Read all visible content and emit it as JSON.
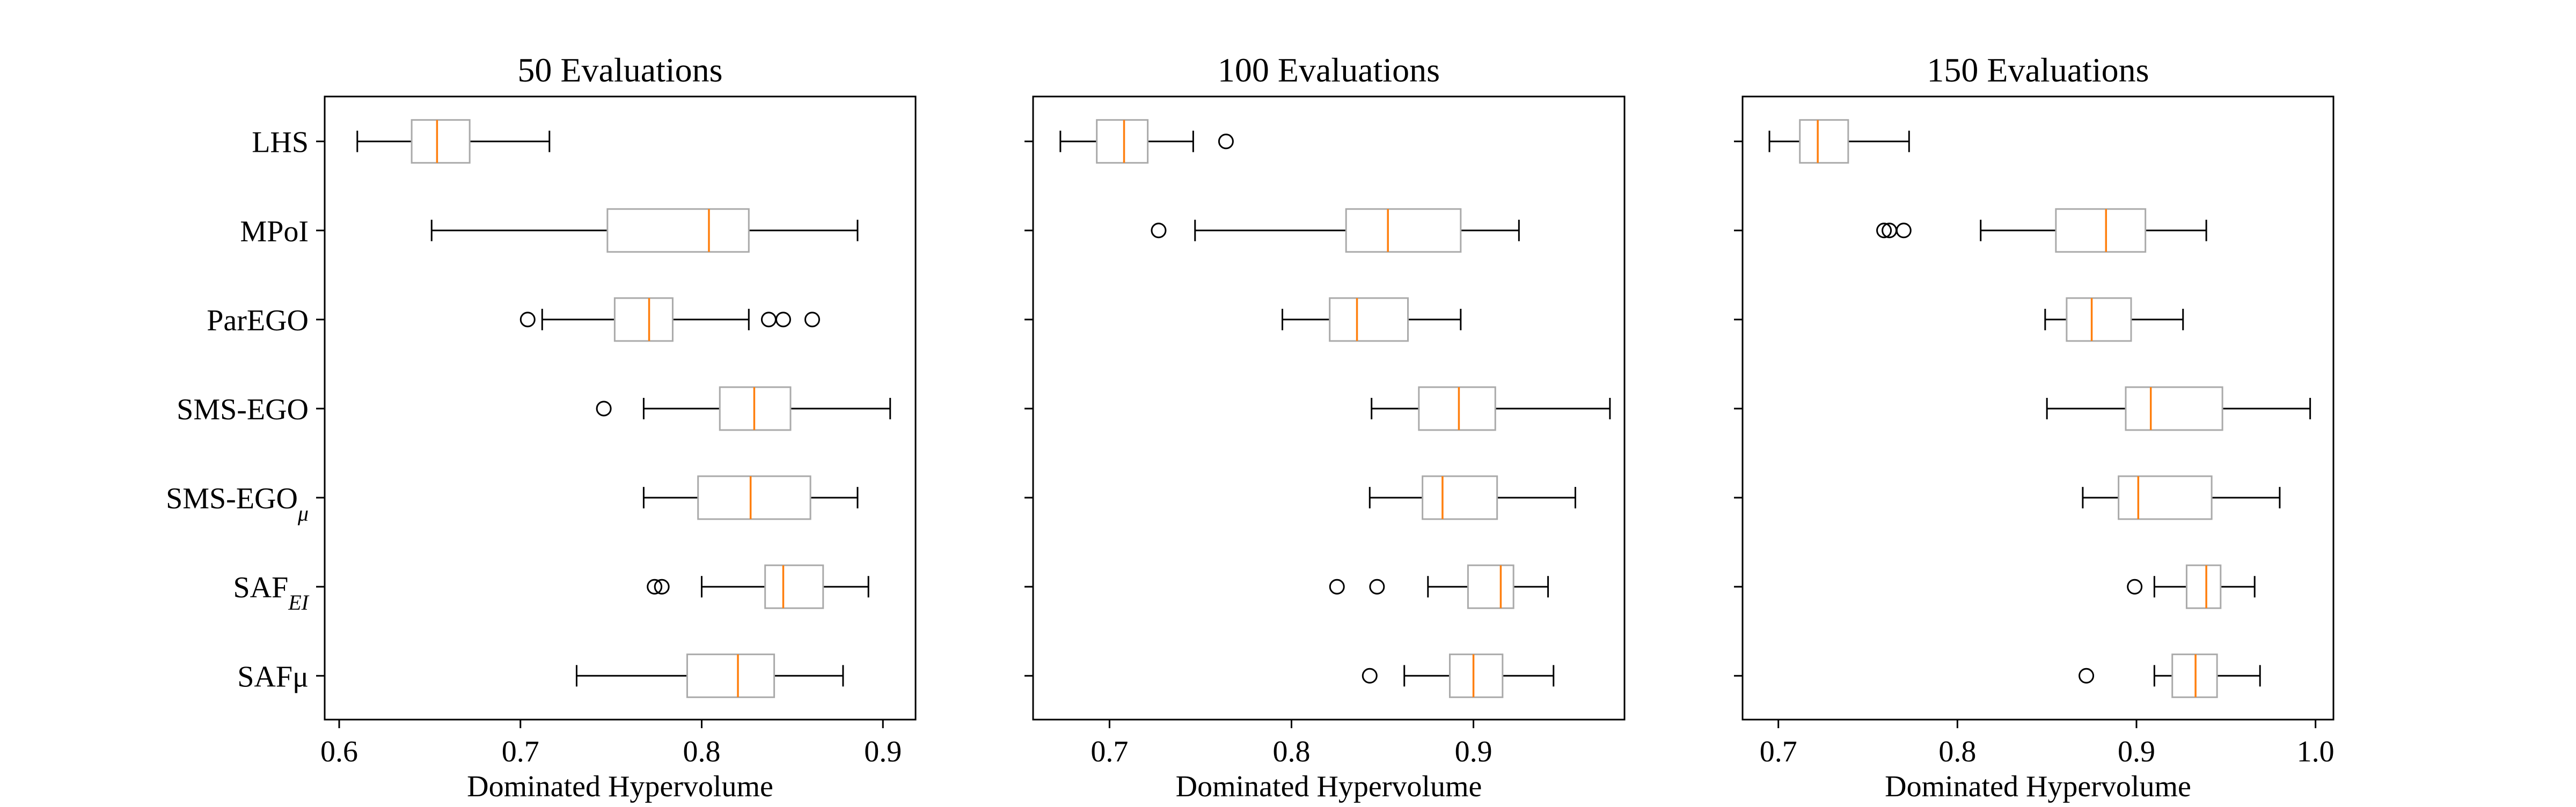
{
  "chart_data": [
    {
      "type": "box",
      "title": "50 Evaluations",
      "xlabel": "Dominated Hypervolume",
      "xlim": [
        0.592,
        0.918
      ],
      "xticks": [
        0.6,
        0.7,
        0.8,
        0.9
      ],
      "xtick_labels": [
        "0.6",
        "0.7",
        "0.8",
        "0.9"
      ],
      "categories": [
        "LHS",
        "MPoI",
        "ParEGO",
        "SMS-EGO",
        "SMS-EGO_μ",
        "SAF_EI",
        "SAFμ"
      ],
      "boxes": [
        {
          "whislo": 0.61,
          "q1": 0.64,
          "med": 0.654,
          "q3": 0.672,
          "whishi": 0.716,
          "fliers": []
        },
        {
          "whislo": 0.651,
          "q1": 0.748,
          "med": 0.804,
          "q3": 0.826,
          "whishi": 0.886,
          "fliers": []
        },
        {
          "whislo": 0.712,
          "q1": 0.752,
          "med": 0.771,
          "q3": 0.784,
          "whishi": 0.826,
          "fliers": [
            0.704,
            0.837,
            0.845,
            0.861
          ]
        },
        {
          "whislo": 0.768,
          "q1": 0.81,
          "med": 0.829,
          "q3": 0.849,
          "whishi": 0.904,
          "fliers": [
            0.746
          ]
        },
        {
          "whislo": 0.768,
          "q1": 0.798,
          "med": 0.827,
          "q3": 0.86,
          "whishi": 0.886,
          "fliers": []
        },
        {
          "whislo": 0.8,
          "q1": 0.835,
          "med": 0.845,
          "q3": 0.867,
          "whishi": 0.892,
          "fliers": [
            0.774,
            0.778
          ]
        },
        {
          "whislo": 0.731,
          "q1": 0.792,
          "med": 0.82,
          "q3": 0.84,
          "whishi": 0.878,
          "fliers": []
        }
      ]
    },
    {
      "type": "box",
      "title": "100 Evaluations",
      "xlabel": "Dominated Hypervolume",
      "xlim": [
        0.658,
        0.983
      ],
      "xticks": [
        0.7,
        0.8,
        0.9
      ],
      "xtick_labels": [
        "0.7",
        "0.8",
        "0.9"
      ],
      "categories": [
        "LHS",
        "MPoI",
        "ParEGO",
        "SMS-EGO",
        "SMS-EGO_μ",
        "SAF_EI",
        "SAFμ"
      ],
      "boxes": [
        {
          "whislo": 0.673,
          "q1": 0.693,
          "med": 0.708,
          "q3": 0.721,
          "whishi": 0.746,
          "fliers": [
            0.764
          ]
        },
        {
          "whislo": 0.747,
          "q1": 0.83,
          "med": 0.853,
          "q3": 0.893,
          "whishi": 0.925,
          "fliers": [
            0.727
          ]
        },
        {
          "whislo": 0.795,
          "q1": 0.821,
          "med": 0.836,
          "q3": 0.864,
          "whishi": 0.893,
          "fliers": []
        },
        {
          "whislo": 0.844,
          "q1": 0.87,
          "med": 0.892,
          "q3": 0.912,
          "whishi": 0.975,
          "fliers": []
        },
        {
          "whislo": 0.843,
          "q1": 0.872,
          "med": 0.883,
          "q3": 0.913,
          "whishi": 0.956,
          "fliers": []
        },
        {
          "whislo": 0.875,
          "q1": 0.897,
          "med": 0.915,
          "q3": 0.922,
          "whishi": 0.941,
          "fliers": [
            0.825,
            0.847
          ]
        },
        {
          "whislo": 0.862,
          "q1": 0.887,
          "med": 0.9,
          "q3": 0.916,
          "whishi": 0.944,
          "fliers": [
            0.843
          ]
        }
      ]
    },
    {
      "type": "box",
      "title": "150 Evaluations",
      "xlabel": "Dominated Hypervolume",
      "xlim": [
        0.68,
        1.01
      ],
      "xticks": [
        0.7,
        0.8,
        0.9,
        1.0
      ],
      "xtick_labels": [
        "0.7",
        "0.8",
        "0.9",
        "1.0"
      ],
      "categories": [
        "LHS",
        "MPoI",
        "ParEGO",
        "SMS-EGO",
        "SMS-EGO_μ",
        "SAF_EI",
        "SAFμ"
      ],
      "boxes": [
        {
          "whislo": 0.695,
          "q1": 0.712,
          "med": 0.722,
          "q3": 0.739,
          "whishi": 0.773,
          "fliers": []
        },
        {
          "whislo": 0.813,
          "q1": 0.855,
          "med": 0.883,
          "q3": 0.905,
          "whishi": 0.939,
          "fliers": [
            0.759,
            0.762,
            0.77
          ]
        },
        {
          "whislo": 0.849,
          "q1": 0.861,
          "med": 0.875,
          "q3": 0.897,
          "whishi": 0.926,
          "fliers": []
        },
        {
          "whislo": 0.85,
          "q1": 0.894,
          "med": 0.908,
          "q3": 0.948,
          "whishi": 0.997,
          "fliers": []
        },
        {
          "whislo": 0.87,
          "q1": 0.89,
          "med": 0.901,
          "q3": 0.942,
          "whishi": 0.98,
          "fliers": []
        },
        {
          "whislo": 0.91,
          "q1": 0.928,
          "med": 0.939,
          "q3": 0.947,
          "whishi": 0.966,
          "fliers": [
            0.899
          ]
        },
        {
          "whislo": 0.91,
          "q1": 0.92,
          "med": 0.933,
          "q3": 0.945,
          "whishi": 0.969,
          "fliers": [
            0.872
          ]
        }
      ]
    }
  ],
  "category_labels": [
    {
      "text": "LHS",
      "sub": ""
    },
    {
      "text": "MPoI",
      "sub": ""
    },
    {
      "text": "ParEGO",
      "sub": ""
    },
    {
      "text": "SMS-EGO",
      "sub": ""
    },
    {
      "text": "SMS-EGO",
      "sub": "μ"
    },
    {
      "text": "SAF",
      "sub": "EI"
    },
    {
      "text": "SAFμ",
      "sub": ""
    }
  ],
  "colors": {
    "box": "#aaaaaa",
    "median": "#ff7f0e",
    "whisker": "#000000",
    "flier": "#000000",
    "axes": "#000000"
  }
}
